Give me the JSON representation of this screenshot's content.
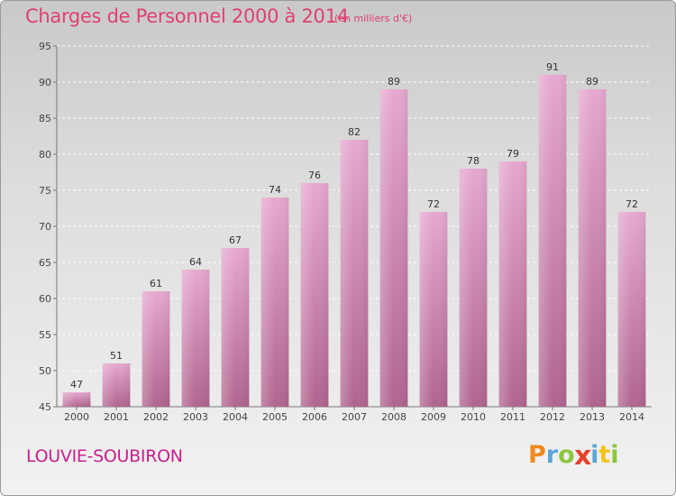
{
  "title": "Charges de Personnel 2000 à 2014",
  "subtitle": "(en milliers d'€)",
  "commune": "LOUVIE-SOUBIRON",
  "logo": {
    "letters": [
      "P",
      "r",
      "o",
      "x",
      "i",
      "t",
      "i"
    ],
    "colors": [
      "#f08a1c",
      "#5aa7d8",
      "#8cc63f",
      "#e8402a",
      "#5aa7d8",
      "#f2c417",
      "#8cc63f"
    ]
  },
  "chart_data": {
    "type": "bar",
    "categories": [
      "2000",
      "2001",
      "2002",
      "2003",
      "2004",
      "2005",
      "2006",
      "2007",
      "2008",
      "2009",
      "2010",
      "2011",
      "2012",
      "2013",
      "2014"
    ],
    "values": [
      47,
      51,
      61,
      64,
      67,
      74,
      76,
      82,
      89,
      72,
      78,
      79,
      91,
      89,
      72
    ],
    "ylim": [
      45,
      95
    ],
    "yticks": [
      45,
      50,
      55,
      60,
      65,
      70,
      75,
      80,
      85,
      90,
      95
    ],
    "grid": true,
    "bar_color_top": "#e6a8cf",
    "bar_color_bottom": "#b0658f"
  }
}
